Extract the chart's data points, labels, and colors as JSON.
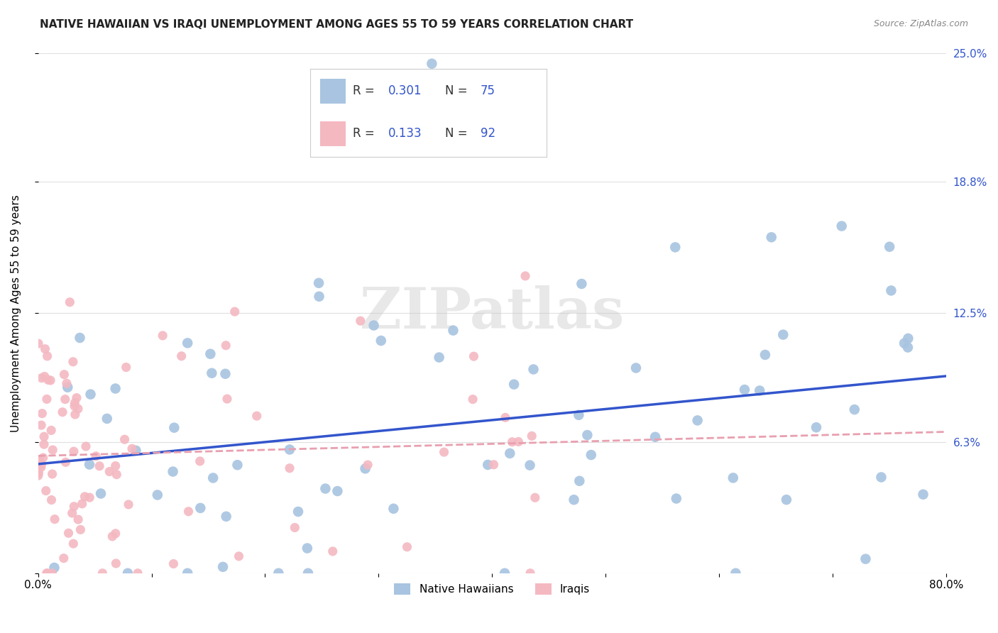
{
  "title": "NATIVE HAWAIIAN VS IRAQI UNEMPLOYMENT AMONG AGES 55 TO 59 YEARS CORRELATION CHART",
  "source": "Source: ZipAtlas.com",
  "ylabel": "Unemployment Among Ages 55 to 59 years",
  "xlim": [
    0.0,
    0.8
  ],
  "ylim": [
    0.0,
    0.25
  ],
  "ytick_positions": [
    0.0,
    0.063,
    0.125,
    0.188,
    0.25
  ],
  "ytick_labels": [
    "",
    "6.3%",
    "12.5%",
    "18.8%",
    "25.0%"
  ],
  "r_hawaiian": 0.301,
  "n_hawaiian": 75,
  "r_iraqi": 0.133,
  "n_iraqi": 92,
  "hawaiian_color": "#a8c4e0",
  "iraqi_color": "#f4b8c1",
  "hawaiian_line_color": "#3355cc",
  "iraqi_line_color": "#e8a0b0",
  "watermark": "ZIPatlas",
  "background_color": "#ffffff",
  "grid_color": "#e0e0e0"
}
